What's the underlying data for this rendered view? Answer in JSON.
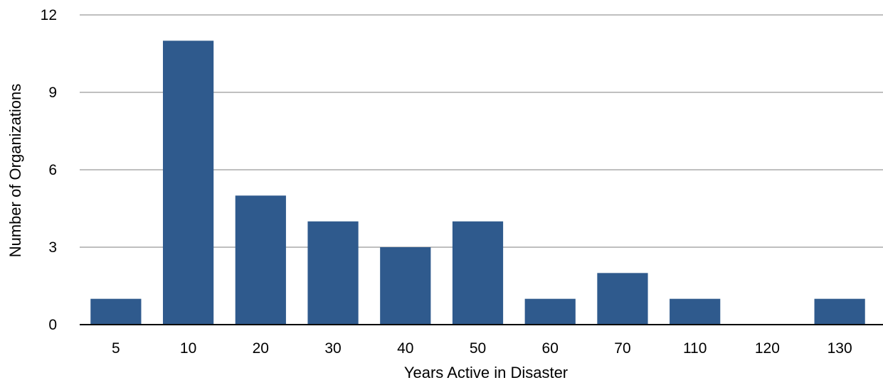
{
  "chart_data": {
    "type": "bar",
    "title": "",
    "xlabel": "Years Active in Disaster",
    "ylabel": "Number of Organizations",
    "categories": [
      "5",
      "10",
      "20",
      "30",
      "40",
      "50",
      "60",
      "70",
      "110",
      "120",
      "130"
    ],
    "values": [
      1,
      11,
      5,
      4,
      3,
      4,
      1,
      2,
      1,
      0,
      1
    ],
    "ylim": [
      0,
      12
    ],
    "yticks": [
      0,
      3,
      6,
      9,
      12
    ],
    "ytick_labels": [
      "0",
      "3",
      "6",
      "9",
      "12"
    ],
    "grid": true,
    "legend": "none",
    "bar_color": "#2f5a8d"
  }
}
